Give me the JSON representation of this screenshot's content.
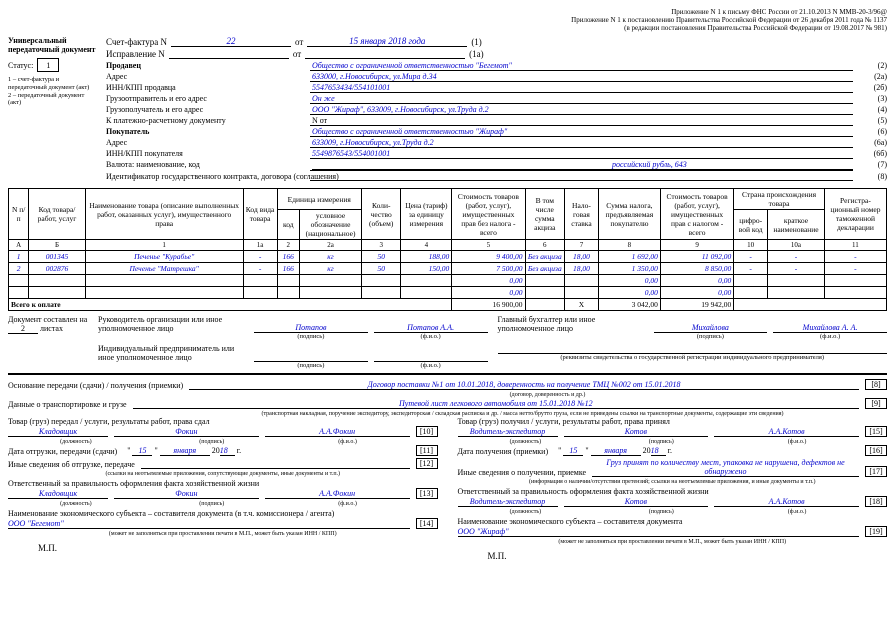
{
  "header": {
    "line1": "Приложение N 1 к письму ФНС России от 21.10.2013 N ММВ-20-3/96@",
    "line2": "Приложение N 1 к постановлению Правительства Российской Федерации от 26 декабря 2011 года № 1137",
    "line3": "(в редакции постановления Правительства Российской Федерации от 19.08.2017 № 981)"
  },
  "left": {
    "title": "Универсальный передаточный документ",
    "statusLbl": "Статус:",
    "status": "1",
    "foot": "1 – счет-фактура и передаточный документ (акт)\n2 – передаточный документ (акт)"
  },
  "invoice": {
    "sfLbl": "Счет-фактура N",
    "sfNo": "22",
    "ot": "от",
    "sfDate": "15 января 2018 года",
    "sfCode": "(1)",
    "isLbl": "Исправление N",
    "isNo": "",
    "isDate": "",
    "isCode": "(1а)"
  },
  "fields": [
    {
      "lbl": "Продавец",
      "val": "Общество с ограниченной ответственностью \"Бегемот\"",
      "code": "(2)",
      "bold": true
    },
    {
      "lbl": "Адрес",
      "val": "633000, г.Новосибирск, ул.Мира д.34",
      "code": "(2а)"
    },
    {
      "lbl": "ИНН/КПП продавца",
      "val": "5547653434/554101001",
      "code": "(2б)"
    },
    {
      "lbl": "Грузоотправитель и его адрес",
      "val": "Он же",
      "code": "(3)"
    },
    {
      "lbl": "Грузополучатель и его адрес",
      "val": "ООО \"Жираф\", 633009, г.Новосибирск, ул.Труда д.2",
      "code": "(4)"
    },
    {
      "lbl": "К платежно-расчетному документу",
      "val": "N                           от",
      "code": "(5)",
      "black": true
    },
    {
      "lbl": "Покупатель",
      "val": "Общество с ограниченной ответственностью \"Жираф\"",
      "code": "(6)",
      "bold": true
    },
    {
      "lbl": "Адрес",
      "val": "633009, г.Новосибирск, ул.Труда д.2",
      "code": "(6а)"
    },
    {
      "lbl": "ИНН/КПП покупателя",
      "val": "5549876543/554001001",
      "code": "(6б)"
    },
    {
      "lbl": "Валюта: наименование, код",
      "val": "российский рубль, 643",
      "code": "(7)",
      "cur": true
    },
    {
      "lbl": "Идентификатор государственного контракта, договора (соглашения)",
      "val": "",
      "code": "(8)"
    }
  ],
  "table": {
    "headers": {
      "c1": "N п/п",
      "c2": "Код товара/ работ, услуг",
      "c3": "Наименование товара (описание выполненных работ, оказанных услуг), имущественного права",
      "c4": "Код вида товара",
      "c5": "Единица измерения",
      "c5a": "код",
      "c5b": "условное обозначение (национальное)",
      "c6": "Коли-чество (объем)",
      "c7": "Цена (тариф) за единицу измерения",
      "c8": "Стоимость товаров (работ, услуг), имущественных прав без налога - всего",
      "c9": "В том числе сумма акциза",
      "c10": "Нало-говая ставка",
      "c11": "Сумма налога, предъявляемая покупателю",
      "c12": "Стоимость товаров (работ, услуг), имущественных прав с налогом - всего",
      "c13": "Страна происхождения товара",
      "c13a": "цифро-вой код",
      "c13b": "краткое наименование",
      "c14": "Регистра-ционный номер таможенной декларации"
    },
    "nums": [
      "А",
      "Б",
      "1",
      "1а",
      "2",
      "2а",
      "3",
      "4",
      "5",
      "6",
      "7",
      "8",
      "9",
      "10",
      "10а",
      "11"
    ],
    "rows": [
      {
        "n": "1",
        "code": "001345",
        "name": "Печенье \"Курабье\"",
        "kind": "-",
        "ucode": "166",
        "uname": "кг",
        "qty": "50",
        "price": "188,00",
        "sum": "9 400,00",
        "akc": "Без акциза",
        "rate": "18,00",
        "tax": "1 692,00",
        "total": "11 092,00",
        "cc": "-",
        "cn": "-",
        "td": "-"
      },
      {
        "n": "2",
        "code": "002876",
        "name": "Печенье \"Матрешка\"",
        "kind": "-",
        "ucode": "166",
        "uname": "кг",
        "qty": "50",
        "price": "150,00",
        "sum": "7 500,00",
        "akc": "Без акциза",
        "rate": "18,00",
        "tax": "1 350,00",
        "total": "8 850,00",
        "cc": "-",
        "cn": "-",
        "td": "-"
      },
      {
        "n": "",
        "code": "",
        "name": "",
        "kind": "",
        "ucode": "",
        "uname": "",
        "qty": "",
        "price": "",
        "sum": "0,00",
        "akc": "",
        "rate": "",
        "tax": "0,00",
        "total": "0,00",
        "cc": "",
        "cn": "",
        "td": ""
      },
      {
        "n": "",
        "code": "",
        "name": "",
        "kind": "",
        "ucode": "",
        "uname": "",
        "qty": "",
        "price": "",
        "sum": "0,00",
        "akc": "",
        "rate": "",
        "tax": "0,00",
        "total": "0,00",
        "cc": "",
        "cn": "",
        "td": ""
      }
    ],
    "totalLbl": "Всего к оплате",
    "totalSum": "16 900,00",
    "totalX": "X",
    "totalTax": "3 042,00",
    "totalAll": "19 942,00"
  },
  "sig": {
    "docLbl": "Документ составлен на",
    "sheets": "2",
    "sheetsLbl": "листах",
    "r1": "Руководитель организации или иное уполномоченное лицо",
    "r1n": "Потапов",
    "r1f": "Потапов А.А.",
    "r2": "Главный бухгалтер или иное уполномоченное лицо",
    "r2n": "Михайлова",
    "r2f": "Михайлова А. А.",
    "r3": "Индивидуальный предприниматель или иное уполномоченное лицо",
    "sub1": "(подпись)",
    "sub2": "(ф.и.о.)",
    "sub3": "(реквизиты свидетельства о государственной регистрации индивидуального предпринимателя)"
  },
  "transfer": {
    "t1": {
      "lbl": "Основание передачи (сдачи) / получения (приемки)",
      "val": "Договор поставки №1 от 10.01.2018, доверенность на получение ТМЦ №002 от 15.01.2018",
      "code": "[8]",
      "sub": "(договор, доверенность и др.)"
    },
    "t2": {
      "lbl": "Данные о транспортировке и грузе",
      "val": "Путевой лист легкового автомобиля от 15.01.2018 №12",
      "code": "[9]",
      "sub": "(транспортная накладная, поручение экспедитору, экспедиторская / складская расписка и др. / масса нетто/брутто груза, если не приведены ссылки на транспортные документы, содержащие эти сведения)"
    }
  },
  "left_block": {
    "h": "Товар (груз) передал / услуги, результаты работ, права сдал",
    "job": "Кладовщик",
    "sign": "Фокин",
    "fio": "А.А.Фокин",
    "c1": "[10]",
    "dateLbl": "Дата отгрузки, передачи (сдачи)",
    "d": "15",
    "m": "января",
    "y": "18",
    "c2": "[11]",
    "other": "Иные сведения об отгрузке, передаче",
    "c3": "[12]",
    "otherSub": "(ссылки на неотъемлемые приложения, сопутствующие документы, иные документы и т.п.)",
    "resp": "Ответственный за правильность оформления факта хозяйственной жизни",
    "job2": "Кладовщик",
    "sign2": "Фокин",
    "fio2": "А.А.Фокин",
    "c4": "[13]",
    "econ": "Наименование экономического субъекта – составителя документа (в т.ч. комиссионера / агента)",
    "econVal": "ООО \"Бегемот\"",
    "c5": "[14]",
    "econSub": "(может не заполняться при проставлении печати в М.П., может быть указан ИНН / КПП)",
    "mp": "М.П."
  },
  "right_block": {
    "h": "Товар (груз) получил / услуги, результаты работ, права принял",
    "job": "Водитель-экспедитор",
    "sign": "Котов",
    "fio": "А.А.Котов",
    "c1": "[15]",
    "dateLbl": "Дата получения (приемки)",
    "d": "15",
    "m": "января",
    "y": "18",
    "c2": "[16]",
    "other": "Иные сведения о получении, приемке",
    "otherVal": "Груз принят по количеству мест, упаковка не нарушена, дефектов не обнаружено",
    "c3": "[17]",
    "otherSub": "(информация о наличии/отсутствии претензий; ссылки на неотъемлемые приложения, и иные  документы и т.п.)",
    "resp": "Ответственный за правильность оформления факта хозяйственной жизни",
    "job2": "Водитель-экспедитор",
    "sign2": "Котов",
    "fio2": "А.А.Котов",
    "c4": "[18]",
    "econ": "Наименование экономического субъекта – составителя документа",
    "econVal": "ООО \"Жираф\"",
    "c5": "[19]",
    "econSub": "(может не заполняться при проставлении печати в М.П., может быть указан ИНН / КПП)",
    "mp": "М.П."
  },
  "subs": {
    "job": "(должность)",
    "sign": "(подпись)",
    "fio": "(ф.и.о.)"
  }
}
